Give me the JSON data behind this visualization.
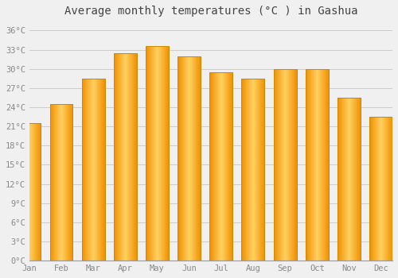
{
  "title": "Average monthly temperatures (°C ) in Gashua",
  "months": [
    "Jan",
    "Feb",
    "Mar",
    "Apr",
    "May",
    "Jun",
    "Jul",
    "Aug",
    "Sep",
    "Oct",
    "Nov",
    "Dec"
  ],
  "values": [
    21.5,
    24.5,
    28.5,
    32.5,
    33.5,
    32.0,
    29.5,
    28.5,
    30.0,
    30.0,
    25.5,
    22.5
  ],
  "bar_color_light": "#FFD060",
  "bar_color_dark": "#F09000",
  "bar_edge_color": "#CC8800",
  "background_color": "#F0F0F0",
  "plot_bg_color": "#F0F0F0",
  "grid_color": "#CCCCCC",
  "yticks": [
    0,
    3,
    6,
    9,
    12,
    15,
    18,
    21,
    24,
    27,
    30,
    33,
    36
  ],
  "ylim": [
    0,
    37.5
  ],
  "title_fontsize": 10,
  "tick_fontsize": 7.5,
  "tick_color": "#888888"
}
